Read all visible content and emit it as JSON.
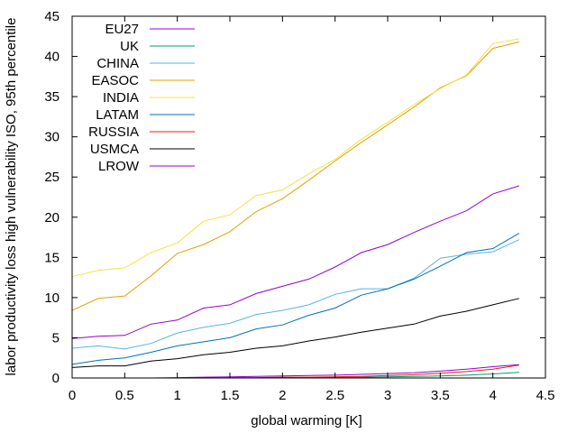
{
  "chart_data": {
    "type": "line",
    "title": "",
    "xlabel": "global warming [K]",
    "ylabel": "labor productivity loss high vulnerability ISO, 95th percentile",
    "xlim": [
      0,
      4.5
    ],
    "ylim": [
      0,
      45
    ],
    "xticks": [
      0,
      0.5,
      1,
      1.5,
      2,
      2.5,
      3,
      3.5,
      4,
      4.5
    ],
    "xtick_labels": [
      "0",
      "0.5",
      "1",
      "1.5",
      "2",
      "2.5",
      "3",
      "3.5",
      "4",
      "4.5"
    ],
    "yticks": [
      0,
      5,
      10,
      15,
      20,
      25,
      30,
      35,
      40,
      45
    ],
    "ytick_labels": [
      "0",
      "5",
      "10",
      "15",
      "20",
      "25",
      "30",
      "35",
      "40",
      "45"
    ],
    "grid": false,
    "legend_position": "top-left",
    "series": [
      {
        "name": "EU27",
        "color": "#9400d3",
        "x": [
          0.5,
          0.75,
          1,
          1.25,
          1.5,
          1.75,
          2,
          2.25,
          2.5,
          2.75,
          3,
          3.25,
          3.5,
          3.75,
          4,
          4.25
        ],
        "y": [
          0.0,
          0.0,
          0.05,
          0.1,
          0.15,
          0.2,
          0.25,
          0.3,
          0.35,
          0.45,
          0.55,
          0.65,
          0.85,
          1.1,
          1.4,
          1.65
        ]
      },
      {
        "name": "UK",
        "color": "#009e73",
        "x": [
          0.5,
          0.75,
          1,
          1.25,
          1.5,
          1.75,
          2,
          2.25,
          2.5,
          2.75,
          3,
          3.25,
          3.5,
          3.75,
          4,
          4.25
        ],
        "y": [
          0.0,
          0.0,
          0.0,
          0.0,
          0.0,
          0.0,
          0.05,
          0.05,
          0.1,
          0.1,
          0.15,
          0.2,
          0.25,
          0.35,
          0.5,
          0.7
        ]
      },
      {
        "name": "CHINA",
        "color": "#56b4e9",
        "x": [
          0,
          0.25,
          0.5,
          0.75,
          1,
          1.25,
          1.5,
          1.75,
          2,
          2.25,
          2.5,
          2.75,
          3,
          3.25,
          3.5,
          3.75,
          4,
          4.25
        ],
        "y": [
          3.7,
          4.0,
          3.6,
          4.3,
          5.6,
          6.3,
          6.8,
          7.9,
          8.4,
          9.1,
          10.4,
          11.1,
          11.1,
          12.4,
          14.9,
          15.4,
          15.7,
          17.2
        ]
      },
      {
        "name": "EASOC",
        "color": "#e69f00",
        "x": [
          0,
          0.25,
          0.5,
          0.75,
          1,
          1.25,
          1.5,
          1.75,
          2,
          2.25,
          2.5,
          2.75,
          3,
          3.25,
          3.5,
          3.75,
          4,
          4.25
        ],
        "y": [
          8.4,
          9.9,
          10.2,
          12.7,
          15.5,
          16.6,
          18.2,
          20.7,
          22.3,
          24.6,
          27.0,
          29.3,
          31.5,
          33.7,
          36.1,
          37.6,
          41.0,
          41.8
        ]
      },
      {
        "name": "INDIA",
        "color": "#f0e442",
        "x": [
          0,
          0.25,
          0.5,
          0.75,
          1,
          1.25,
          1.5,
          1.75,
          2,
          2.25,
          2.5,
          2.75,
          3,
          3.25,
          3.5,
          3.75,
          4,
          4.25
        ],
        "y": [
          12.6,
          13.4,
          13.7,
          15.6,
          16.8,
          19.5,
          20.3,
          22.7,
          23.4,
          25.4,
          27.2,
          29.7,
          31.8,
          34.0,
          36.0,
          37.7,
          41.6,
          42.2
        ]
      },
      {
        "name": "LATAM",
        "color": "#0072b2",
        "x": [
          0,
          0.25,
          0.5,
          0.75,
          1,
          1.25,
          1.5,
          1.75,
          2,
          2.25,
          2.5,
          2.75,
          3,
          3.25,
          3.5,
          3.75,
          4,
          4.25
        ],
        "y": [
          1.7,
          2.2,
          2.5,
          3.2,
          4.0,
          4.5,
          5.0,
          6.1,
          6.6,
          7.8,
          8.7,
          10.3,
          11.1,
          12.3,
          13.9,
          15.6,
          16.1,
          18.0
        ]
      },
      {
        "name": "RUSSIA",
        "color": "#e51e10",
        "x": [
          0.5,
          0.75,
          1,
          1.25,
          1.5,
          1.75,
          2,
          2.25,
          2.5,
          2.75,
          3,
          3.25,
          3.5,
          3.75,
          4,
          4.25
        ],
        "y": [
          0.0,
          0.0,
          0.0,
          0.0,
          0.05,
          0.05,
          0.1,
          0.1,
          0.15,
          0.2,
          0.3,
          0.4,
          0.6,
          0.8,
          1.1,
          1.6
        ]
      },
      {
        "name": "USMCA",
        "color": "#000000",
        "x": [
          0,
          0.25,
          0.5,
          0.75,
          1,
          1.25,
          1.5,
          1.75,
          2,
          2.25,
          2.5,
          2.75,
          3,
          3.25,
          3.5,
          3.75,
          4,
          4.25
        ],
        "y": [
          1.3,
          1.5,
          1.5,
          2.1,
          2.4,
          2.9,
          3.2,
          3.7,
          4.0,
          4.6,
          5.1,
          5.7,
          6.2,
          6.7,
          7.7,
          8.3,
          9.1,
          9.9
        ]
      },
      {
        "name": "LROW",
        "color": "#9400d3",
        "x": [
          0,
          0.25,
          0.5,
          0.75,
          1,
          1.25,
          1.5,
          1.75,
          2,
          2.25,
          2.5,
          2.75,
          3,
          3.25,
          3.5,
          3.75,
          4,
          4.25
        ],
        "y": [
          4.9,
          5.2,
          5.3,
          6.7,
          7.2,
          8.7,
          9.1,
          10.5,
          11.4,
          12.3,
          13.8,
          15.6,
          16.6,
          18.1,
          19.5,
          20.8,
          22.9,
          23.9
        ]
      }
    ]
  }
}
